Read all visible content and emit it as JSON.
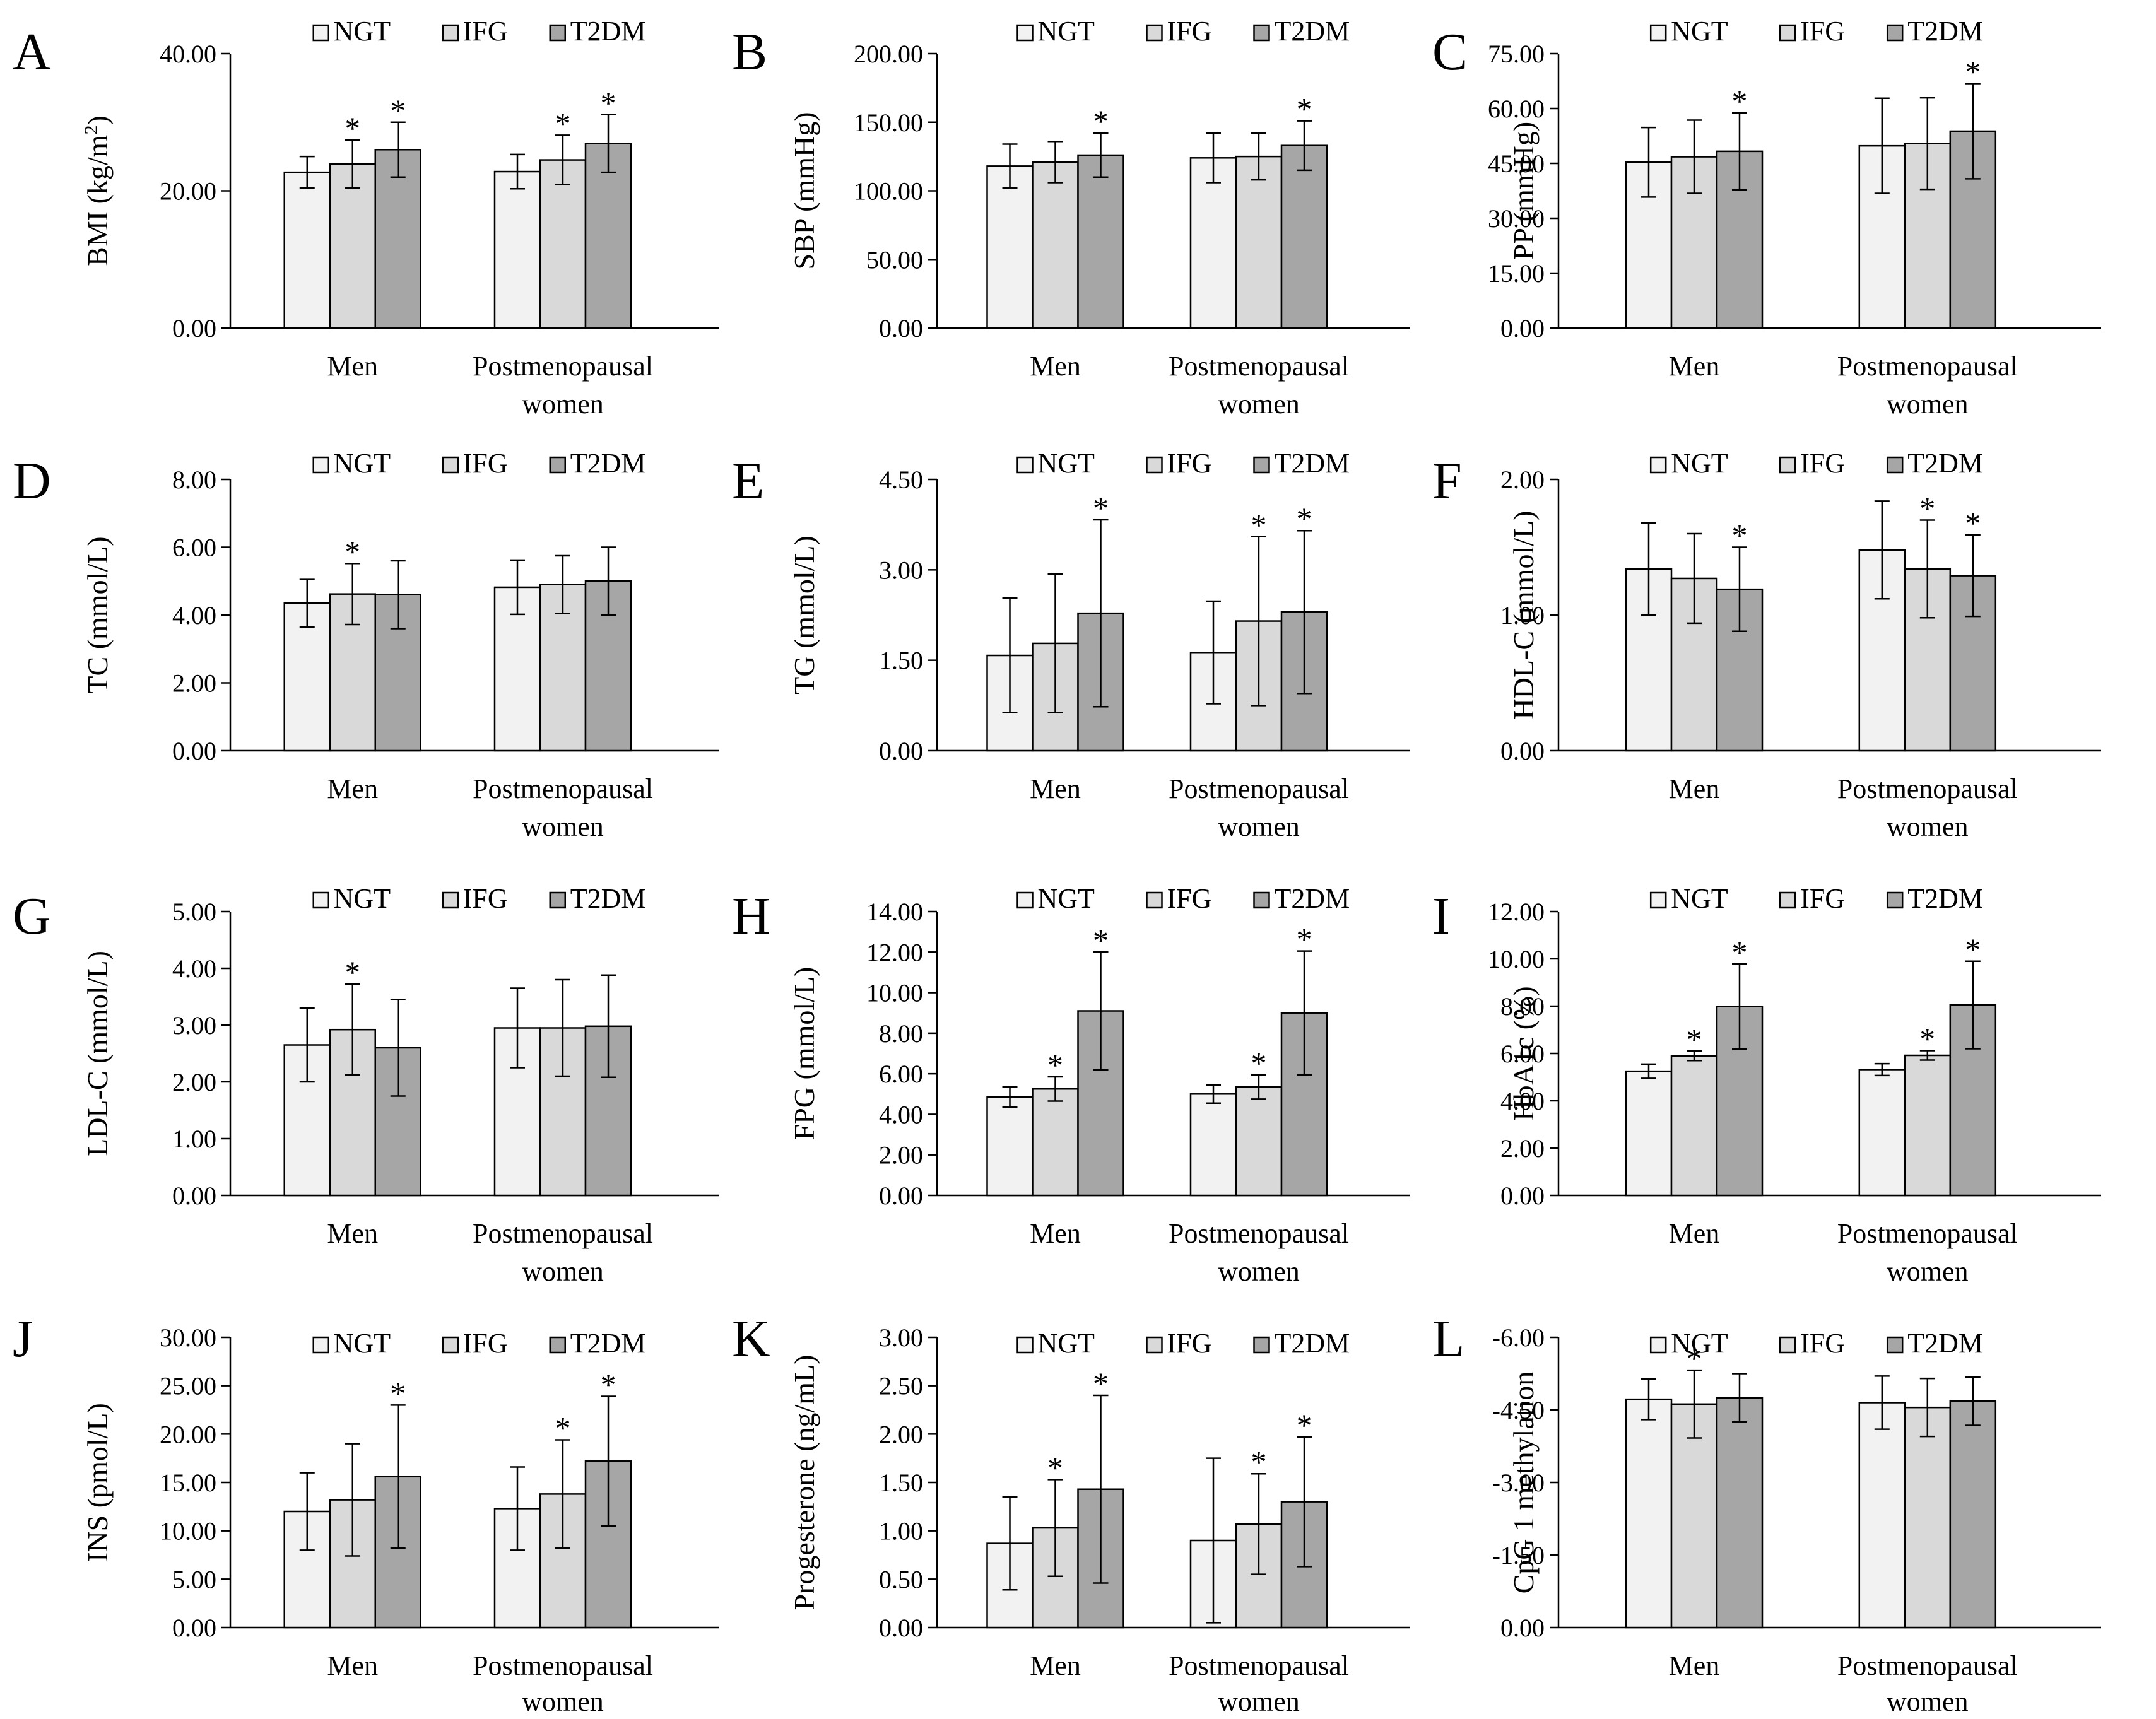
{
  "figure": {
    "colors": {
      "NGT": "#f2f2f2",
      "IFG": "#d9d9d9",
      "T2DM": "#a6a6a6",
      "stroke": "#000000"
    }
  },
  "chart_data": [
    {
      "type": "bar",
      "panel": "A",
      "ylabel": "BMI (kg/m2)",
      "ylabel_main": "BMI (kg/m",
      "ylabel_sup": "2",
      "ylabel_tail": ")",
      "ylim": [
        0,
        40
      ],
      "yticks": [
        "0.00",
        "20.00",
        "40.00"
      ],
      "tick_values": [
        0,
        20,
        40
      ],
      "categories": [
        "Men",
        "Postmenopausal women"
      ],
      "series": [
        {
          "name": "NGT",
          "values": [
            22.7,
            22.8
          ],
          "errors": [
            2.3,
            2.5
          ],
          "sig": [
            false,
            false
          ]
        },
        {
          "name": "IFG",
          "values": [
            23.9,
            24.5
          ],
          "errors": [
            3.5,
            3.6
          ],
          "sig": [
            true,
            true
          ]
        },
        {
          "name": "T2DM",
          "values": [
            26.0,
            26.9
          ],
          "errors": [
            4.0,
            4.2
          ],
          "sig": [
            true,
            true
          ]
        }
      ]
    },
    {
      "type": "bar",
      "panel": "B",
      "ylabel": "SBP (mmHg)",
      "ylim": [
        0,
        200
      ],
      "yticks": [
        "0.00",
        "50.00",
        "100.00",
        "150.00",
        "200.00"
      ],
      "tick_values": [
        0,
        50,
        100,
        150,
        200
      ],
      "categories": [
        "Men",
        "Postmenopausal women"
      ],
      "series": [
        {
          "name": "NGT",
          "values": [
            118,
            124
          ],
          "errors": [
            16,
            18
          ],
          "sig": [
            false,
            false
          ]
        },
        {
          "name": "IFG",
          "values": [
            121,
            125
          ],
          "errors": [
            15,
            17
          ],
          "sig": [
            false,
            false
          ]
        },
        {
          "name": "T2DM",
          "values": [
            126,
            133
          ],
          "errors": [
            16,
            18
          ],
          "sig": [
            true,
            true
          ]
        }
      ]
    },
    {
      "type": "bar",
      "panel": "C",
      "ylabel": "PP (mmHg)",
      "ylim": [
        0,
        75
      ],
      "yticks": [
        "0.00",
        "15.00",
        "30.00",
        "45.00",
        "60.00",
        "75.00"
      ],
      "tick_values": [
        0,
        15,
        30,
        45,
        60,
        75
      ],
      "categories": [
        "Men",
        "Postmenopausal women"
      ],
      "series": [
        {
          "name": "NGT",
          "values": [
            45.3,
            49.8
          ],
          "errors": [
            9.5,
            13
          ],
          "sig": [
            false,
            false
          ]
        },
        {
          "name": "IFG",
          "values": [
            46.8,
            50.4
          ],
          "errors": [
            10,
            12.5
          ],
          "sig": [
            false,
            false
          ]
        },
        {
          "name": "T2DM",
          "values": [
            48.3,
            53.8
          ],
          "errors": [
            10.5,
            13
          ],
          "sig": [
            true,
            true
          ]
        }
      ]
    },
    {
      "type": "bar",
      "panel": "D",
      "ylabel": "TC (mmol/L)",
      "ylim": [
        0,
        8
      ],
      "yticks": [
        "0.00",
        "2.00",
        "4.00",
        "6.00",
        "8.00"
      ],
      "tick_values": [
        0,
        2,
        4,
        6,
        8
      ],
      "categories": [
        "Men",
        "Postmenopausal women"
      ],
      "series": [
        {
          "name": "NGT",
          "values": [
            4.35,
            4.82
          ],
          "errors": [
            0.7,
            0.8
          ],
          "sig": [
            false,
            false
          ]
        },
        {
          "name": "IFG",
          "values": [
            4.62,
            4.9
          ],
          "errors": [
            0.9,
            0.85
          ],
          "sig": [
            true,
            false
          ]
        },
        {
          "name": "T2DM",
          "values": [
            4.6,
            5.0
          ],
          "errors": [
            1.0,
            1.0
          ],
          "sig": [
            false,
            false
          ]
        }
      ]
    },
    {
      "type": "bar",
      "panel": "E",
      "ylabel": "TG (mmol/L)",
      "ylim": [
        0,
        4.5
      ],
      "yticks": [
        "0.00",
        "1.50",
        "3.00",
        "4.50"
      ],
      "tick_values": [
        0,
        1.5,
        3,
        4.5
      ],
      "categories": [
        "Men",
        "Postmenopausal women"
      ],
      "series": [
        {
          "name": "NGT",
          "values": [
            1.58,
            1.63
          ],
          "errors": [
            0.95,
            0.85
          ],
          "sig": [
            false,
            false
          ]
        },
        {
          "name": "IFG",
          "values": [
            1.78,
            2.15
          ],
          "errors": [
            1.15,
            1.4
          ],
          "sig": [
            false,
            true
          ]
        },
        {
          "name": "T2DM",
          "values": [
            2.28,
            2.3
          ],
          "errors": [
            1.55,
            1.35
          ],
          "sig": [
            true,
            true
          ]
        }
      ]
    },
    {
      "type": "bar",
      "panel": "F",
      "ylabel": "HDL-C (mmol/L)",
      "ylim": [
        0,
        2
      ],
      "yticks": [
        "0.00",
        "1.00",
        "2.00"
      ],
      "tick_values": [
        0,
        1,
        2
      ],
      "categories": [
        "Men",
        "Postmenopausal women"
      ],
      "series": [
        {
          "name": "NGT",
          "values": [
            1.34,
            1.48
          ],
          "errors": [
            0.34,
            0.36
          ],
          "sig": [
            false,
            false
          ]
        },
        {
          "name": "IFG",
          "values": [
            1.27,
            1.34
          ],
          "errors": [
            0.33,
            0.36
          ],
          "sig": [
            false,
            true
          ]
        },
        {
          "name": "T2DM",
          "values": [
            1.19,
            1.29
          ],
          "errors": [
            0.31,
            0.3
          ],
          "sig": [
            true,
            true
          ]
        }
      ]
    },
    {
      "type": "bar",
      "panel": "G",
      "ylabel": "LDL-C (mmol/L)",
      "ylim": [
        0,
        5
      ],
      "yticks": [
        "0.00",
        "1.00",
        "2.00",
        "3.00",
        "4.00",
        "5.00"
      ],
      "tick_values": [
        0,
        1,
        2,
        3,
        4,
        5
      ],
      "categories": [
        "Men",
        "Postmenopausal women"
      ],
      "series": [
        {
          "name": "NGT",
          "values": [
            2.65,
            2.95
          ],
          "errors": [
            0.65,
            0.7
          ],
          "sig": [
            false,
            false
          ]
        },
        {
          "name": "IFG",
          "values": [
            2.92,
            2.95
          ],
          "errors": [
            0.8,
            0.85
          ],
          "sig": [
            true,
            false
          ]
        },
        {
          "name": "T2DM",
          "values": [
            2.6,
            2.98
          ],
          "errors": [
            0.85,
            0.9
          ],
          "sig": [
            false,
            false
          ]
        }
      ]
    },
    {
      "type": "bar",
      "panel": "H",
      "ylabel": "FPG (mmol/L)",
      "ylim": [
        0,
        14
      ],
      "yticks": [
        "0.00",
        "2.00",
        "4.00",
        "6.00",
        "8.00",
        "10.00",
        "12.00",
        "14.00"
      ],
      "tick_values": [
        0,
        2,
        4,
        6,
        8,
        10,
        12,
        14
      ],
      "categories": [
        "Men",
        "Postmenopausal women"
      ],
      "series": [
        {
          "name": "NGT",
          "values": [
            4.85,
            5.0
          ],
          "errors": [
            0.5,
            0.45
          ],
          "sig": [
            false,
            false
          ]
        },
        {
          "name": "IFG",
          "values": [
            5.25,
            5.35
          ],
          "errors": [
            0.6,
            0.6
          ],
          "sig": [
            true,
            true
          ]
        },
        {
          "name": "T2DM",
          "values": [
            9.1,
            9.0
          ],
          "errors": [
            2.9,
            3.05
          ],
          "sig": [
            true,
            true
          ]
        }
      ]
    },
    {
      "type": "bar",
      "panel": "I",
      "ylabel": "HbA1c (%)",
      "ylim": [
        0,
        12
      ],
      "yticks": [
        "0.00",
        "2.00",
        "4.00",
        "6.00",
        "8.00",
        "10.00",
        "12.00"
      ],
      "tick_values": [
        0,
        2,
        4,
        6,
        8,
        10,
        12
      ],
      "categories": [
        "Men",
        "Postmenopausal women"
      ],
      "series": [
        {
          "name": "NGT",
          "values": [
            5.25,
            5.32
          ],
          "errors": [
            0.3,
            0.25
          ],
          "sig": [
            false,
            false
          ]
        },
        {
          "name": "IFG",
          "values": [
            5.9,
            5.92
          ],
          "errors": [
            0.2,
            0.2
          ],
          "sig": [
            true,
            true
          ]
        },
        {
          "name": "T2DM",
          "values": [
            7.98,
            8.05
          ],
          "errors": [
            1.8,
            1.85
          ],
          "sig": [
            true,
            true
          ]
        }
      ]
    },
    {
      "type": "bar",
      "panel": "J",
      "ylabel": "INS (pmol/L)",
      "ylim": [
        0,
        30
      ],
      "yticks": [
        "0.00",
        "5.00",
        "10.00",
        "15.00",
        "20.00",
        "25.00",
        "30.00"
      ],
      "tick_values": [
        0,
        5,
        10,
        15,
        20,
        25,
        30
      ],
      "categories": [
        "Men",
        "Postmenopausal women"
      ],
      "series": [
        {
          "name": "NGT",
          "values": [
            12.0,
            12.3
          ],
          "errors": [
            4.0,
            4.3
          ],
          "sig": [
            false,
            false
          ]
        },
        {
          "name": "IFG",
          "values": [
            13.2,
            13.8
          ],
          "errors": [
            5.8,
            5.6
          ],
          "sig": [
            false,
            true
          ]
        },
        {
          "name": "T2DM",
          "values": [
            15.6,
            17.2
          ],
          "errors": [
            7.4,
            6.7
          ],
          "sig": [
            true,
            true
          ]
        }
      ]
    },
    {
      "type": "bar",
      "panel": "K",
      "ylabel": "Progesterone (ng/mL)",
      "ylim": [
        0,
        3
      ],
      "yticks": [
        "0.00",
        "0.50",
        "1.00",
        "1.50",
        "2.00",
        "2.50",
        "3.00"
      ],
      "tick_values": [
        0,
        0.5,
        1,
        1.5,
        2,
        2.5,
        3
      ],
      "categories": [
        "Men",
        "Postmenopausal women"
      ],
      "series": [
        {
          "name": "NGT",
          "values": [
            0.87,
            0.9
          ],
          "errors": [
            0.48,
            0.85
          ],
          "sig": [
            false,
            false
          ]
        },
        {
          "name": "IFG",
          "values": [
            1.03,
            1.07
          ],
          "errors": [
            0.5,
            0.52
          ],
          "sig": [
            true,
            true
          ]
        },
        {
          "name": "T2DM",
          "values": [
            1.43,
            1.3
          ],
          "errors": [
            0.97,
            0.67
          ],
          "sig": [
            true,
            true
          ]
        }
      ]
    },
    {
      "type": "bar",
      "panel": "L",
      "ylabel": "CpG 1 methylation",
      "ylim": [
        0,
        -6
      ],
      "yticks": [
        "0.00",
        "-1.50",
        "-3.00",
        "-4.50",
        "-6.00"
      ],
      "tick_values": [
        0,
        -1.5,
        -3,
        -4.5,
        -6
      ],
      "categories": [
        "Men",
        "Postmenopausal women"
      ],
      "series": [
        {
          "name": "NGT",
          "values": [
            -4.72,
            -4.65
          ],
          "errors": [
            0.42,
            0.55
          ],
          "sig": [
            false,
            false
          ]
        },
        {
          "name": "IFG",
          "values": [
            -4.62,
            -4.55
          ],
          "errors": [
            0.7,
            0.6
          ],
          "sig": [
            true,
            false
          ]
        },
        {
          "name": "T2DM",
          "values": [
            -4.75,
            -4.68
          ],
          "errors": [
            0.5,
            0.5
          ],
          "sig": [
            false,
            false
          ]
        }
      ]
    }
  ]
}
